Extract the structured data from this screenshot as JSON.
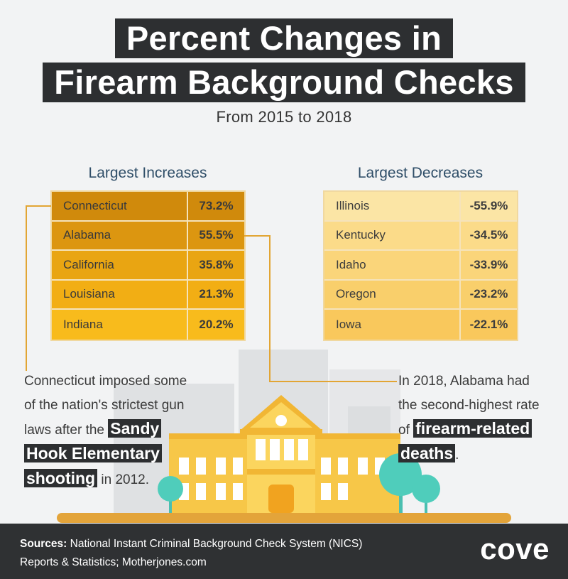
{
  "header": {
    "title_line1": "Percent Changes in",
    "title_line2": "Firearm Background Checks",
    "subtitle": "From 2015 to 2018"
  },
  "chart_data": [
    {
      "type": "table",
      "title": "Largest Increases",
      "categories": [
        "Connecticut",
        "Alabama",
        "California",
        "Louisiana",
        "Indiana"
      ],
      "values": [
        73.2,
        55.5,
        35.8,
        21.3,
        20.2
      ],
      "labels": [
        "73.2%",
        "55.5%",
        "35.8%",
        "21.3%",
        "20.2%"
      ]
    },
    {
      "type": "table",
      "title": "Largest Decreases",
      "categories": [
        "Illinois",
        "Kentucky",
        "Idaho",
        "Oregon",
        "Iowa"
      ],
      "values": [
        -55.9,
        -34.5,
        -33.9,
        -23.2,
        -22.1
      ],
      "labels": [
        "-55.9%",
        "-34.5%",
        "-33.9%",
        "-23.2%",
        "-22.1%"
      ]
    }
  ],
  "notes": {
    "left": {
      "line1": "Connecticut imposed some",
      "line2": "of the nation's strictest gun",
      "line3_pre": "laws after the ",
      "hl1": "Sandy",
      "hl2": "Hook Elementary",
      "hl3": "shooting",
      "line5_post": " in 2012."
    },
    "right": {
      "line1": "In 2018, Alabama had",
      "line2": "the second-highest rate",
      "line3_pre": "of ",
      "hl1": "firearm-related",
      "hl2": "deaths",
      "post": "."
    }
  },
  "footer": {
    "sources_label": "Sources:",
    "sources_text1": " National Instant Criminal Background Check System (NICS)",
    "sources_text2": "Reports & Statistics; Motherjones.com",
    "logo": "cove"
  },
  "colors": {
    "increase_rows": [
      "#d08a0c",
      "#dc9610",
      "#e9a512",
      "#f2ae14",
      "#f8bb1c"
    ],
    "decrease_rows": [
      "#fbe5a5",
      "#fbdb89",
      "#fad57a",
      "#f9cf6b",
      "#f9c85c"
    ],
    "dark": "#2d2f31",
    "accent": "#e2a534"
  }
}
